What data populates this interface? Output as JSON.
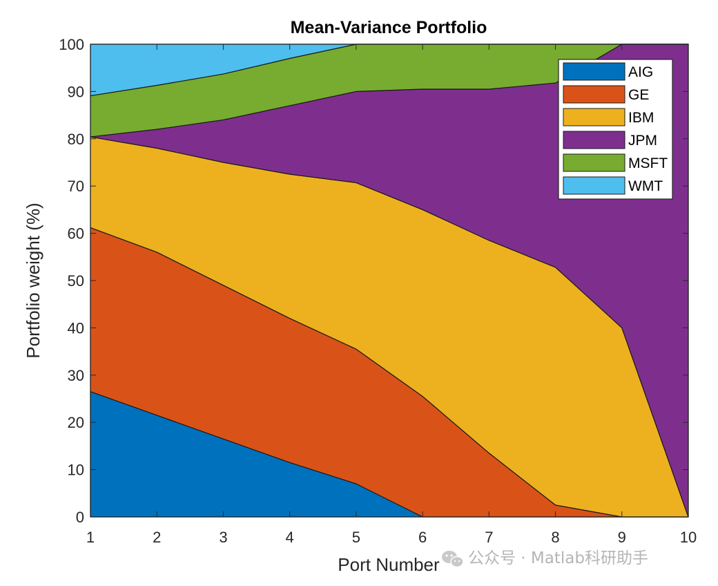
{
  "chart_data": {
    "type": "area",
    "stacked": true,
    "title": "Mean-Variance Portfolio",
    "xlabel": "Port Number",
    "ylabel": "Portfolio weight (%)",
    "x": [
      1,
      2,
      3,
      4,
      5,
      6,
      7,
      8,
      9,
      10
    ],
    "xlim": [
      1,
      10
    ],
    "ylim": [
      0,
      100
    ],
    "xticks": [
      "1",
      "2",
      "3",
      "4",
      "5",
      "6",
      "7",
      "8",
      "9",
      "10"
    ],
    "yticks": [
      "0",
      "10",
      "20",
      "30",
      "40",
      "50",
      "60",
      "70",
      "80",
      "90",
      "100"
    ],
    "legend_position": "top-right",
    "series": [
      {
        "name": "AIG",
        "color": "#0072BD",
        "values": [
          26.5,
          21.5,
          16.5,
          11.5,
          7.0,
          0.0,
          0.0,
          0.0,
          0.0,
          0.0
        ]
      },
      {
        "name": "GE",
        "color": "#D95319",
        "values": [
          34.7,
          34.5,
          32.5,
          30.5,
          28.5,
          25.5,
          13.5,
          2.5,
          0.0,
          0.0
        ]
      },
      {
        "name": "IBM",
        "color": "#EDB120",
        "values": [
          19.2,
          22.0,
          26.0,
          30.5,
          35.2,
          39.5,
          45.0,
          50.3,
          40.0,
          0.0
        ]
      },
      {
        "name": "JPM",
        "color": "#7E2F8E",
        "values": [
          0.0,
          4.0,
          9.0,
          14.5,
          19.3,
          25.5,
          32.0,
          39.0,
          60.0,
          100.0
        ]
      },
      {
        "name": "MSFT",
        "color": "#77AC30",
        "values": [
          8.7,
          9.3,
          9.7,
          10.0,
          10.0,
          9.5,
          9.5,
          8.2,
          0.0,
          0.0
        ]
      },
      {
        "name": "WMT",
        "color": "#4DBEEE",
        "values": [
          10.9,
          8.7,
          6.3,
          3.0,
          0.0,
          0.0,
          0.0,
          0.0,
          0.0,
          0.0
        ]
      }
    ]
  },
  "watermark": {
    "text": "公众号 · Matlab科研助手",
    "icon": "wechat-icon"
  }
}
